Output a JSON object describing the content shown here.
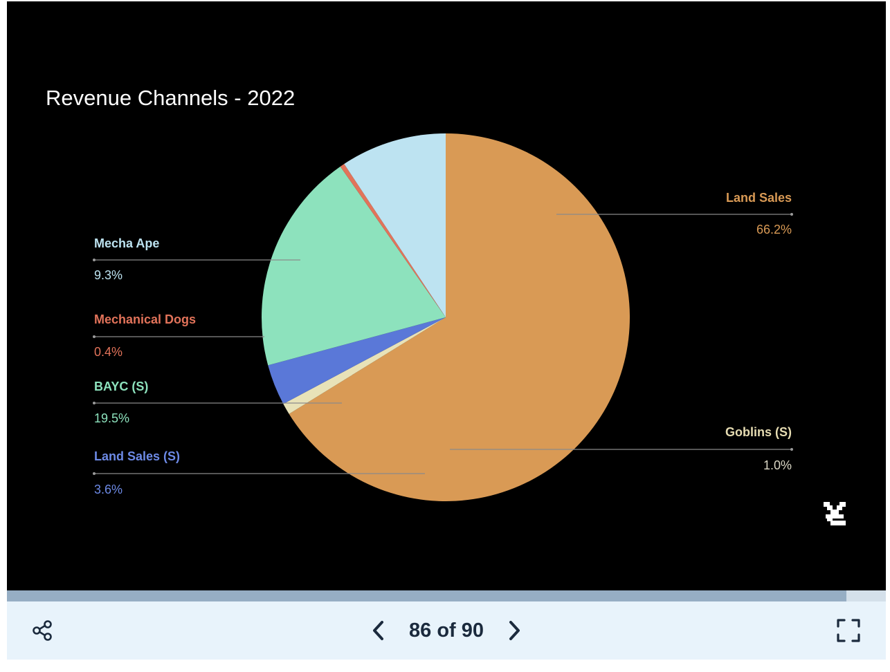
{
  "slide": {
    "title": "Revenue Channels - 2022"
  },
  "chart_data": {
    "type": "pie",
    "title": "Revenue Channels - 2022",
    "slices": [
      {
        "label": "Land Sales",
        "percent_label": "66.2%",
        "value": 66.2,
        "color": "#d99a55"
      },
      {
        "label": "Goblins (S)",
        "percent_label": "1.0%",
        "value": 1.0,
        "color": "#e8e2b8",
        "name_color": "#e6dcb2",
        "pct_color": "#dcd8c6"
      },
      {
        "label": "Land Sales (S)",
        "percent_label": "3.6%",
        "value": 3.6,
        "color": "#5a78d8",
        "name_color": "#6d8ae6"
      },
      {
        "label": "BAYC (S)",
        "percent_label": "19.5%",
        "value": 19.5,
        "color": "#8de2bd"
      },
      {
        "label": "Mechanical Dogs",
        "percent_label": "0.4%",
        "value": 0.4,
        "color": "#e2735a"
      },
      {
        "label": "Mecha Ape",
        "percent_label": "9.3%",
        "value": 9.3,
        "color": "#bde3f1"
      }
    ],
    "start_angle": "top",
    "direction": "clockwise",
    "legend": "callouts"
  },
  "brand": {
    "logo_icon": "brand-logo-icon"
  },
  "viewer": {
    "progress": 0.955,
    "current_page": "86",
    "of_label": "of",
    "total_pages": "90",
    "share_icon": "share-icon",
    "prev_icon": "chevron-left-icon",
    "next_icon": "chevron-right-icon",
    "fullscreen_icon": "fullscreen-icon",
    "track_color": "#d4e0ea",
    "fill_color": "#96aec4",
    "bar_color": "#e8f3fb"
  }
}
